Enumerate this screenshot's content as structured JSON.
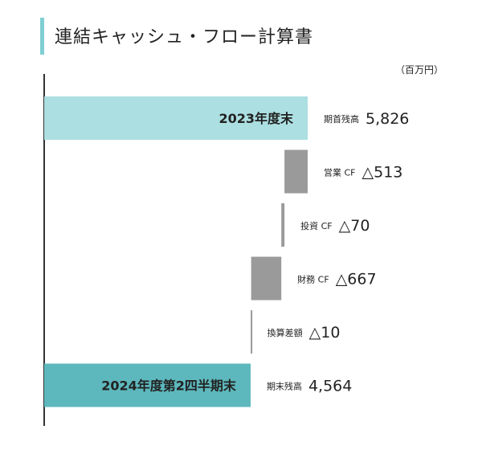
{
  "title": "連結キャッシュ・フロー計算書",
  "unit": "（百万円）",
  "chart_data": {
    "type": "bar",
    "subtype": "waterfall",
    "orientation": "horizontal",
    "title": "連結キャッシュ・フロー計算書",
    "unit": "（百万円）",
    "items": [
      {
        "bar_label": "2023年度末",
        "name": "期首残高",
        "display": "5,826",
        "value": 5826,
        "kind": "total",
        "color": "#acdfe1"
      },
      {
        "bar_label": "",
        "name": "営業 CF",
        "display": "△513",
        "value": -513,
        "kind": "delta",
        "color": "#9a9a9a"
      },
      {
        "bar_label": "",
        "name": "投資 CF",
        "display": "△70",
        "value": -70,
        "kind": "delta",
        "color": "#9a9a9a"
      },
      {
        "bar_label": "",
        "name": "財務 CF",
        "display": "△667",
        "value": -667,
        "kind": "delta",
        "color": "#9a9a9a"
      },
      {
        "bar_label": "",
        "name": "換算差額",
        "display": "△10",
        "value": -10,
        "kind": "delta",
        "color": "#9a9a9a"
      },
      {
        "bar_label": "2024年度第2四半期末",
        "name": "期末残高",
        "display": "4,564",
        "value": 4564,
        "kind": "total",
        "color": "#5db8bd"
      }
    ],
    "xlim": [
      0,
      5826
    ]
  }
}
